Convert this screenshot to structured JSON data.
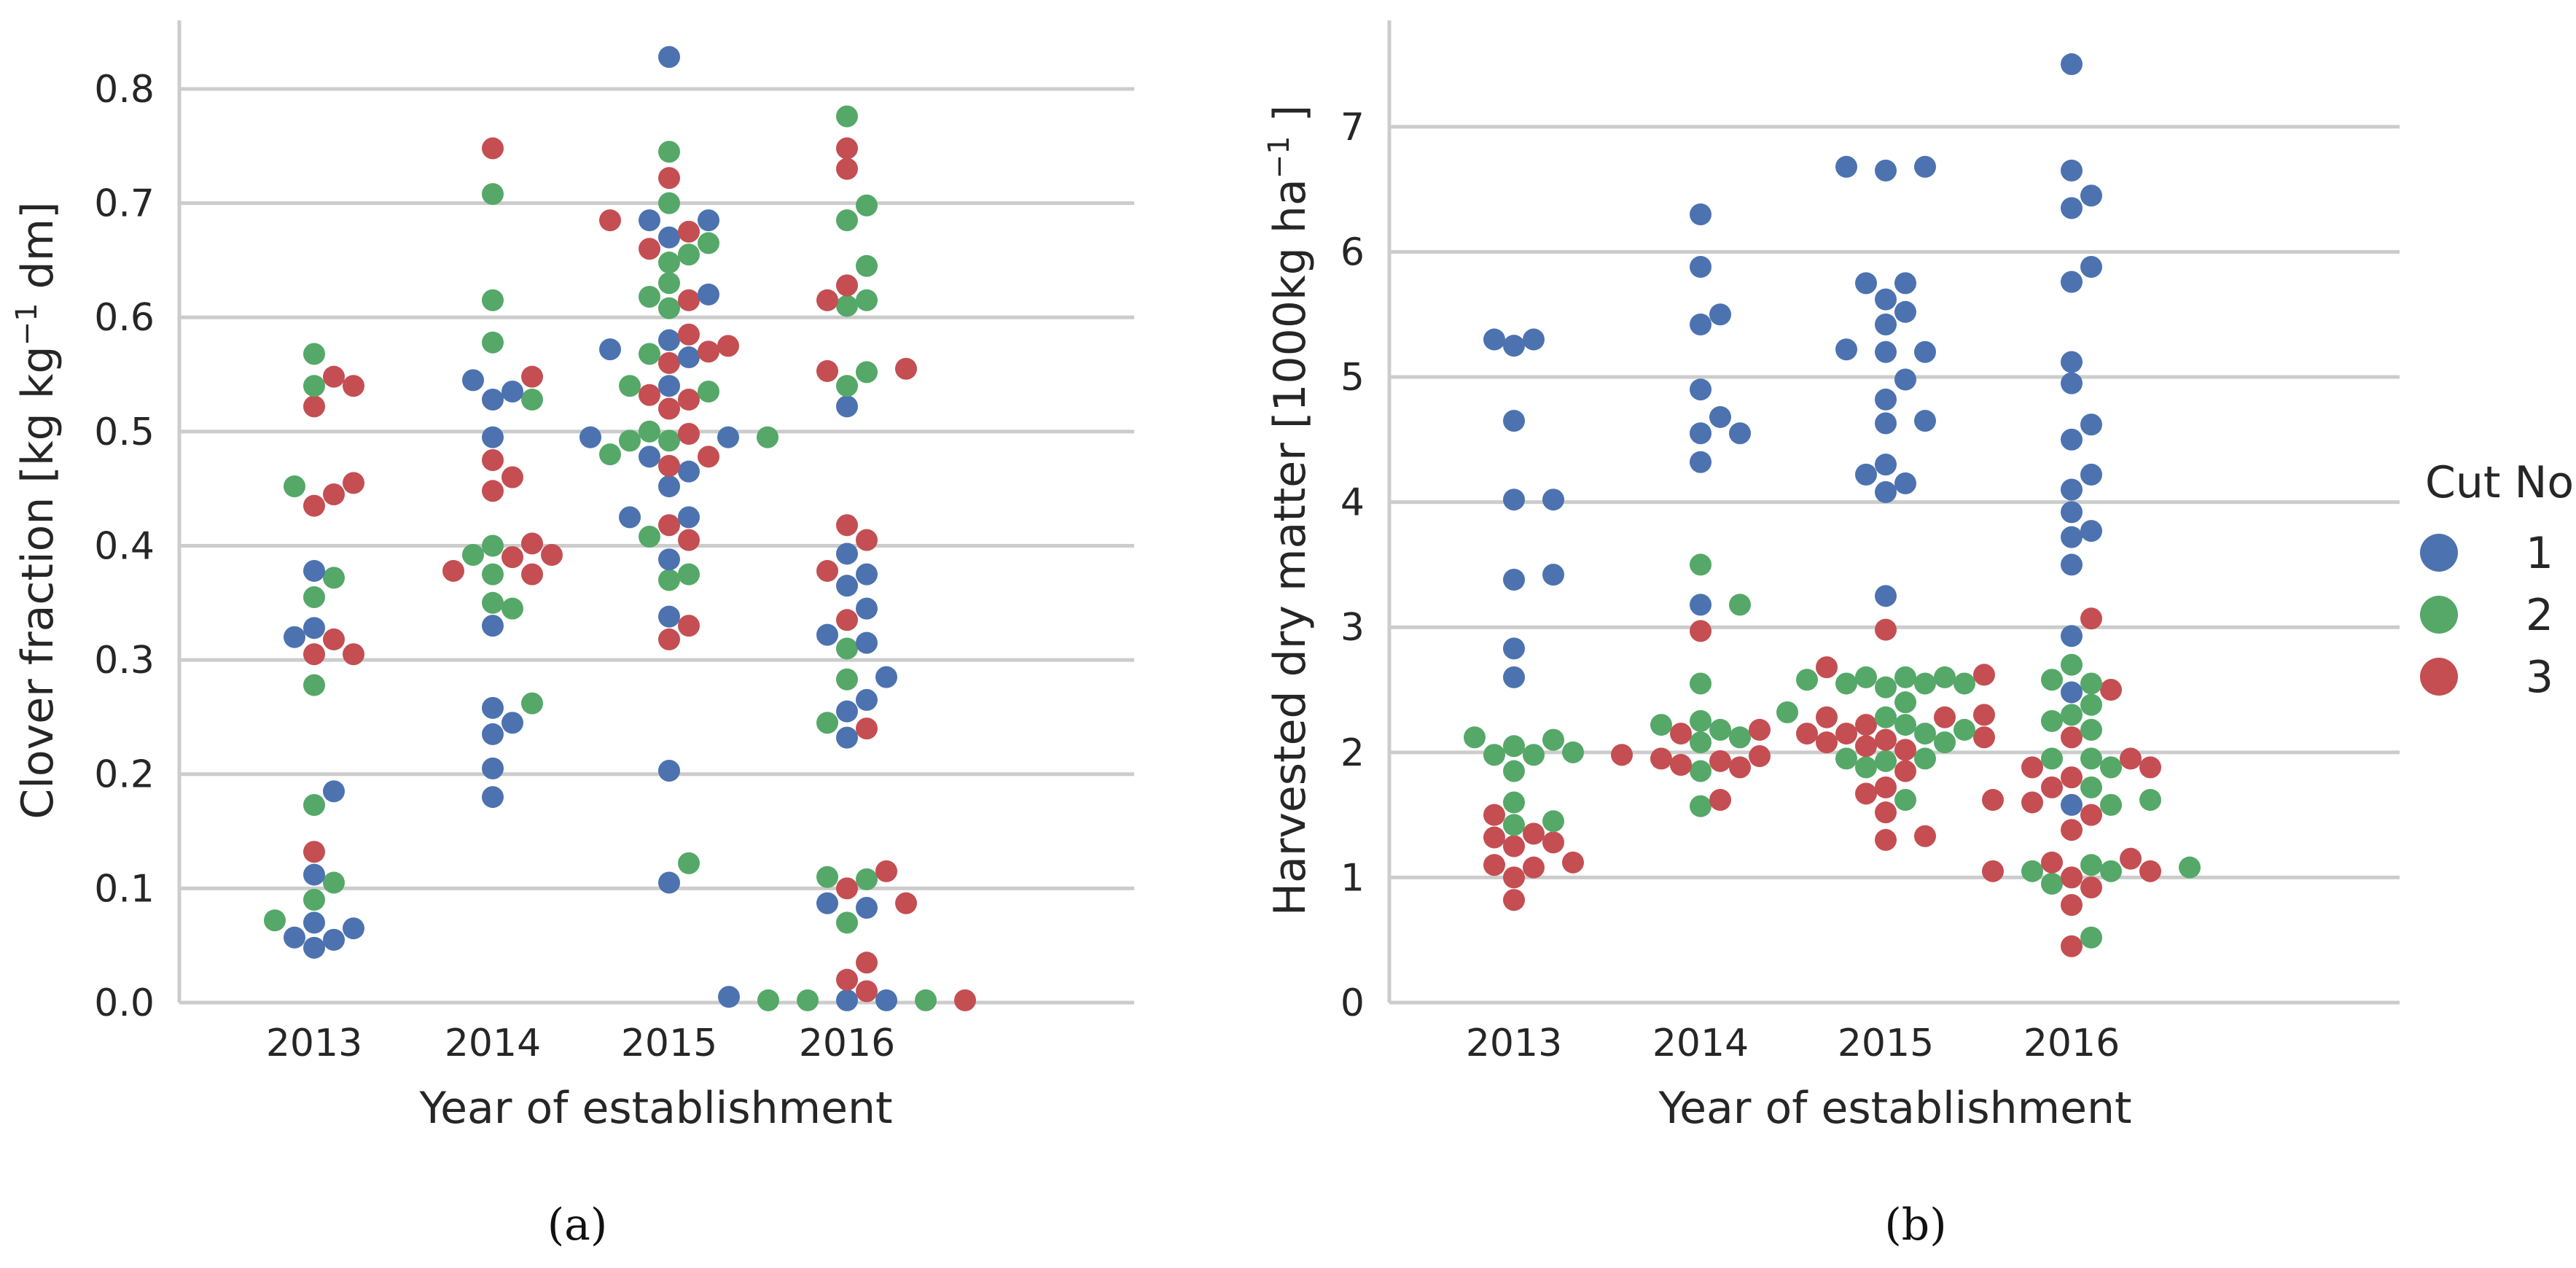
{
  "chart_data": [
    {
      "type": "scatter",
      "subtype": "swarm",
      "caption": "(a)",
      "xlabel": "Year of establishment",
      "ylabel_text": "Clover fraction [kg kg",
      "ylabel_sup": "−1",
      "ylabel_tail": " dm]",
      "categories": [
        "2013",
        "2014",
        "2015",
        "2016"
      ],
      "ylim": [
        0,
        0.86
      ],
      "yticks": [
        0.0,
        0.1,
        0.2,
        0.3,
        0.4,
        0.5,
        0.6,
        0.7,
        0.8
      ],
      "ytick_labels": [
        "0.0",
        "0.1",
        "0.2",
        "0.3",
        "0.4",
        "0.5",
        "0.6",
        "0.7",
        "0.8"
      ],
      "grid": true,
      "series": [
        {
          "name": "1",
          "color": "#4c72b0",
          "values": {
            "2013": [
              0.065,
              0.055,
              0.048,
              0.057,
              0.07,
              0.112,
              0.185,
              0.32,
              0.328,
              0.378
            ],
            "2014": [
              0.18,
              0.205,
              0.235,
              0.245,
              0.258,
              0.33,
              0.495,
              0.528,
              0.535,
              0.545
            ],
            "2015": [
              0.828,
              0.685,
              0.685,
              0.67,
              0.62,
              0.58,
              0.572,
              0.565,
              0.54,
              0.495,
              0.495,
              0.478,
              0.465,
              0.452,
              0.425,
              0.425,
              0.388,
              0.338,
              0.203,
              0.105
            ],
            "2016": [
              0.522,
              0.393,
              0.375,
              0.365,
              0.345,
              0.322,
              0.315,
              0.285,
              0.265,
              0.255,
              0.232,
              0.087,
              0.083,
              0.002,
              0.002,
              0.005
            ]
          }
        },
        {
          "name": "2",
          "color": "#55a868",
          "values": {
            "2013": [
              0.568,
              0.54,
              0.452,
              0.372,
              0.355,
              0.278,
              0.173,
              0.105,
              0.09,
              0.072
            ],
            "2014": [
              0.708,
              0.615,
              0.578,
              0.528,
              0.4,
              0.392,
              0.375,
              0.35,
              0.345,
              0.262
            ],
            "2015": [
              0.745,
              0.7,
              0.665,
              0.655,
              0.648,
              0.63,
              0.608,
              0.618,
              0.568,
              0.54,
              0.535,
              0.5,
              0.495,
              0.492,
              0.492,
              0.48,
              0.408,
              0.375,
              0.37,
              0.122
            ],
            "2016": [
              0.776,
              0.698,
              0.685,
              0.645,
              0.615,
              0.61,
              0.552,
              0.54,
              0.31,
              0.283,
              0.245,
              0.11,
              0.108,
              0.07,
              0.002,
              0.002,
              0.002
            ]
          }
        },
        {
          "name": "3",
          "color": "#c44e52",
          "values": {
            "2013": [
              0.548,
              0.54,
              0.522,
              0.455,
              0.445,
              0.435,
              0.318,
              0.305,
              0.305,
              0.132
            ],
            "2014": [
              0.748,
              0.548,
              0.475,
              0.46,
              0.448,
              0.402,
              0.392,
              0.39,
              0.378,
              0.375
            ],
            "2015": [
              0.722,
              0.685,
              0.675,
              0.66,
              0.615,
              0.585,
              0.575,
              0.57,
              0.56,
              0.532,
              0.528,
              0.52,
              0.498,
              0.478,
              0.47,
              0.418,
              0.405,
              0.33,
              0.318
            ],
            "2016": [
              0.748,
              0.73,
              0.628,
              0.615,
              0.553,
              0.555,
              0.418,
              0.405,
              0.378,
              0.335,
              0.24,
              0.115,
              0.1,
              0.087,
              0.035,
              0.02,
              0.01,
              0.002
            ]
          }
        }
      ]
    },
    {
      "type": "scatter",
      "subtype": "swarm",
      "caption": "(b)",
      "xlabel": "Year of establishment",
      "ylabel_text": "Harvested dry matter [1000kg ha",
      "ylabel_sup": "−1",
      "ylabel_tail": " ]",
      "categories": [
        "2013",
        "2014",
        "2015",
        "2016"
      ],
      "ylim": [
        0,
        7.85
      ],
      "yticks": [
        0,
        1,
        2,
        3,
        4,
        5,
        6,
        7
      ],
      "ytick_labels": [
        "0",
        "1",
        "2",
        "3",
        "4",
        "5",
        "6",
        "7"
      ],
      "grid": true,
      "series": [
        {
          "name": "1",
          "color": "#4c72b0",
          "values": {
            "2013": [
              5.3,
              5.25,
              5.3,
              4.65,
              4.02,
              4.02,
              3.42,
              3.38,
              2.83,
              2.6
            ],
            "2014": [
              6.3,
              5.88,
              5.5,
              5.42,
              4.9,
              4.68,
              4.55,
              4.55,
              4.32,
              3.18
            ],
            "2015": [
              6.68,
              6.65,
              6.68,
              5.75,
              5.75,
              5.62,
              5.52,
              5.42,
              5.22,
              5.2,
              5.2,
              4.98,
              4.82,
              4.65,
              4.63,
              4.3,
              4.22,
              4.15,
              4.08,
              3.25
            ],
            "2016": [
              7.5,
              6.65,
              6.45,
              6.35,
              5.88,
              5.76,
              5.12,
              4.95,
              4.62,
              4.5,
              4.22,
              4.1,
              3.92,
              3.77,
              3.72,
              3.5,
              2.93,
              2.48,
              1.58
            ]
          }
        },
        {
          "name": "2",
          "color": "#55a868",
          "values": {
            "2013": [
              2.12,
              2.1,
              2.05,
              2.0,
              1.98,
              1.98,
              1.85,
              1.6,
              1.45,
              1.42
            ],
            "2014": [
              3.5,
              3.18,
              2.55,
              2.25,
              2.22,
              2.18,
              2.12,
              2.08,
              1.85,
              1.57
            ],
            "2015": [
              2.6,
              2.6,
              2.6,
              2.58,
              2.55,
              2.55,
              2.55,
              2.52,
              2.4,
              2.32,
              2.28,
              2.22,
              2.18,
              2.15,
              2.08,
              1.95,
              1.95,
              1.93,
              1.88,
              1.62
            ],
            "2016": [
              2.7,
              2.58,
              2.55,
              2.38,
              2.3,
              2.25,
              2.18,
              1.95,
              1.95,
              1.88,
              1.72,
              1.62,
              1.58,
              1.1,
              1.08,
              1.05,
              1.05,
              0.95,
              0.52
            ]
          }
        },
        {
          "name": "3",
          "color": "#c44e52",
          "values": {
            "2013": [
              1.5,
              1.35,
              1.32,
              1.28,
              1.25,
              1.12,
              1.1,
              1.08,
              1.0,
              0.82
            ],
            "2014": [
              2.97,
              2.18,
              2.15,
              1.98,
              1.97,
              1.95,
              1.93,
              1.9,
              1.88,
              1.62
            ],
            "2015": [
              2.98,
              2.68,
              2.62,
              2.3,
              2.28,
              2.28,
              2.22,
              2.15,
              2.15,
              2.12,
              2.1,
              2.08,
              2.05,
              2.02,
              1.85,
              1.72,
              1.67,
              1.52,
              1.33,
              1.3
            ],
            "2016": [
              3.07,
              2.5,
              2.12,
              1.95,
              1.88,
              1.88,
              1.8,
              1.72,
              1.62,
              1.6,
              1.5,
              1.38,
              1.15,
              1.12,
              1.05,
              1.05,
              1.0,
              0.92,
              0.78,
              0.45
            ]
          }
        }
      ]
    }
  ],
  "legend": {
    "title": "Cut No",
    "entries": [
      {
        "label": "1",
        "color": "#4c72b0"
      },
      {
        "label": "2",
        "color": "#55a868"
      },
      {
        "label": "3",
        "color": "#c44e52"
      }
    ]
  }
}
